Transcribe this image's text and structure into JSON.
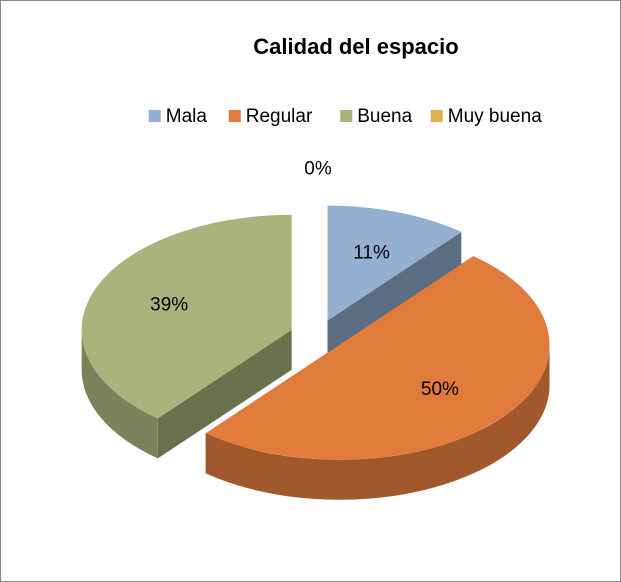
{
  "chart_data": {
    "type": "pie3d",
    "title": "Calidad del espacio",
    "categories": [
      "Mala",
      "Regular",
      "Buena",
      "Muy buena"
    ],
    "values": [
      11,
      50,
      39,
      0
    ],
    "value_labels": [
      "11%",
      "50%",
      "39%",
      "0%"
    ],
    "colors": [
      "#93b0d3",
      "#e07b3c",
      "#a8b47c",
      "#dcb350"
    ],
    "legend": "top"
  }
}
